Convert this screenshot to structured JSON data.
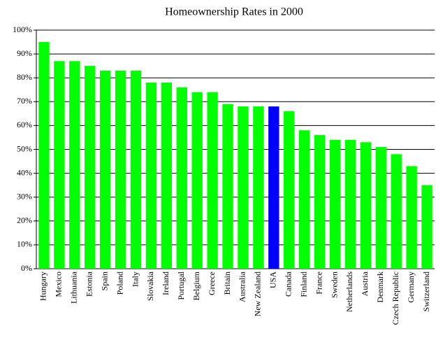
{
  "chart_data": {
    "type": "bar",
    "title": "Homeownership Rates in 2000",
    "categories": [
      "Hungary",
      "Mexico",
      "Lithuania",
      "Estonia",
      "Spain",
      "Poland",
      "Italy",
      "Slovakia",
      "Ireland",
      "Portugal",
      "Belgium",
      "Greece",
      "Britain",
      "Australia",
      "New Zealand",
      "USA",
      "Canada",
      "Finland",
      "France",
      "Sweden",
      "Netherlands",
      "Austria",
      "Denmark",
      "Czech Republic",
      "Germany",
      "Switzerland"
    ],
    "values": [
      95,
      87,
      87,
      85,
      83,
      83,
      83,
      78,
      78,
      76,
      74,
      74,
      69,
      68,
      68,
      68,
      66,
      58,
      56,
      54,
      54,
      53,
      51,
      48,
      43,
      35
    ],
    "colors": [
      "#00ff00",
      "#00ff00",
      "#00ff00",
      "#00ff00",
      "#00ff00",
      "#00ff00",
      "#00ff00",
      "#00ff00",
      "#00ff00",
      "#00ff00",
      "#00ff00",
      "#00ff00",
      "#00ff00",
      "#00ff00",
      "#00ff00",
      "#0000ff",
      "#00ff00",
      "#00ff00",
      "#00ff00",
      "#00ff00",
      "#00ff00",
      "#00ff00",
      "#00ff00",
      "#00ff00",
      "#00ff00",
      "#00ff00"
    ],
    "ylim": [
      0,
      100
    ],
    "yticks": [
      {
        "value": 0,
        "label": "0%"
      },
      {
        "value": 10,
        "label": "10%"
      },
      {
        "value": 20,
        "label": "20%"
      },
      {
        "value": 30,
        "label": "30%"
      },
      {
        "value": 40,
        "label": "40%"
      },
      {
        "value": 50,
        "label": "50%"
      },
      {
        "value": 60,
        "label": "60%"
      },
      {
        "value": 70,
        "label": "70%"
      },
      {
        "value": 80,
        "label": "80%"
      },
      {
        "value": 90,
        "label": "90%"
      },
      {
        "value": 100,
        "label": "100%"
      }
    ],
    "grid": true
  }
}
